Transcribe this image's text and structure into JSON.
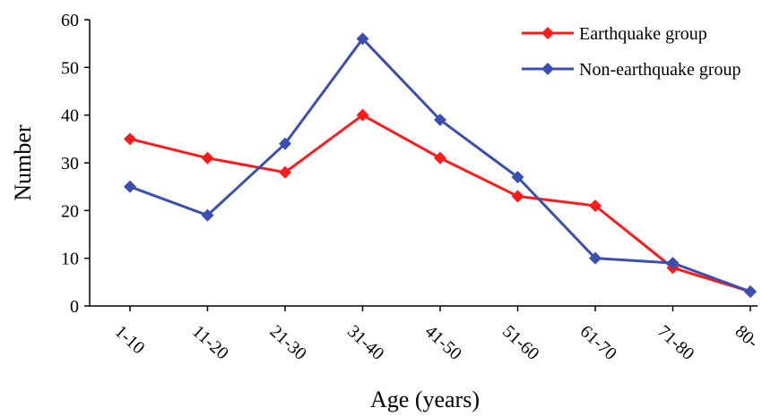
{
  "chart_data": {
    "type": "line",
    "title": "",
    "xlabel": "Age (years)",
    "ylabel": "Number",
    "categories": [
      "1-10",
      "11-20",
      "21-30",
      "31-40",
      "41-50",
      "51-60",
      "61-70",
      "71-80",
      "80-"
    ],
    "ylim": [
      0,
      60
    ],
    "yticks": [
      "0",
      "10",
      "20",
      "30",
      "40",
      "50",
      "60"
    ],
    "grid": false,
    "legend": "top-right",
    "series": [
      {
        "name": "Earthquake group",
        "color": "#ff1a1a",
        "marker": "diamond",
        "values": [
          35,
          31,
          28,
          40,
          31,
          23,
          21,
          8,
          3
        ]
      },
      {
        "name": "Non-earthquake group",
        "color": "#3a4fb0",
        "marker": "diamond",
        "values": [
          25,
          19,
          34,
          56,
          39,
          27,
          10,
          9,
          3
        ]
      }
    ]
  }
}
